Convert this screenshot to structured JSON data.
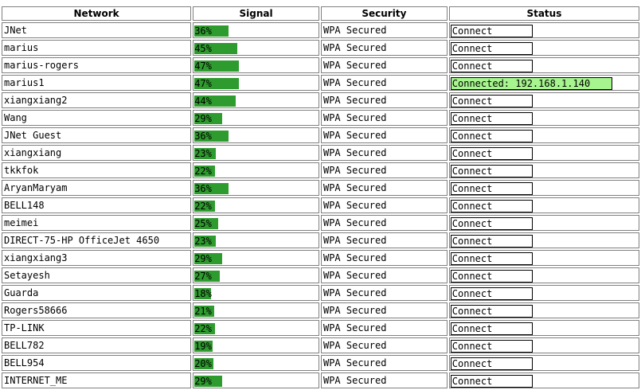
{
  "headers": {
    "network": "Network",
    "signal": "Signal",
    "security": "Security",
    "status": "Status"
  },
  "colors": {
    "signal_bar": "#2e9b2e",
    "connected_bg": "#a6f58e"
  },
  "networks": [
    {
      "name": "JNet",
      "signal": "36%",
      "signal_pct": 36,
      "security": "WPA Secured",
      "status": "Connect",
      "connected": false
    },
    {
      "name": "marius",
      "signal": "45%",
      "signal_pct": 45,
      "security": "WPA Secured",
      "status": "Connect",
      "connected": false
    },
    {
      "name": "marius-rogers",
      "signal": "47%",
      "signal_pct": 47,
      "security": "WPA Secured",
      "status": "Connect",
      "connected": false
    },
    {
      "name": "marius1",
      "signal": "47%",
      "signal_pct": 47,
      "security": "WPA Secured",
      "status": "Connected: 192.168.1.140",
      "connected": true
    },
    {
      "name": "xiangxiang2",
      "signal": "44%",
      "signal_pct": 44,
      "security": "WPA Secured",
      "status": "Connect",
      "connected": false
    },
    {
      "name": "Wang",
      "signal": "29%",
      "signal_pct": 29,
      "security": "WPA Secured",
      "status": "Connect",
      "connected": false
    },
    {
      "name": "JNet Guest",
      "signal": "36%",
      "signal_pct": 36,
      "security": "WPA Secured",
      "status": "Connect",
      "connected": false
    },
    {
      "name": "xiangxiang",
      "signal": "23%",
      "signal_pct": 23,
      "security": "WPA Secured",
      "status": "Connect",
      "connected": false
    },
    {
      "name": "tkkfok",
      "signal": "22%",
      "signal_pct": 22,
      "security": "WPA Secured",
      "status": "Connect",
      "connected": false
    },
    {
      "name": "AryanMaryam",
      "signal": "36%",
      "signal_pct": 36,
      "security": "WPA Secured",
      "status": "Connect",
      "connected": false
    },
    {
      "name": "BELL148",
      "signal": "22%",
      "signal_pct": 22,
      "security": "WPA Secured",
      "status": "Connect",
      "connected": false
    },
    {
      "name": "meimei",
      "signal": "25%",
      "signal_pct": 25,
      "security": "WPA Secured",
      "status": "Connect",
      "connected": false
    },
    {
      "name": "DIRECT-75-HP OfficeJet 4650",
      "signal": "23%",
      "signal_pct": 23,
      "security": "WPA Secured",
      "status": "Connect",
      "connected": false
    },
    {
      "name": "xiangxiang3",
      "signal": "29%",
      "signal_pct": 29,
      "security": "WPA Secured",
      "status": "Connect",
      "connected": false
    },
    {
      "name": "Setayesh",
      "signal": "27%",
      "signal_pct": 27,
      "security": "WPA Secured",
      "status": "Connect",
      "connected": false
    },
    {
      "name": "Guarda",
      "signal": "18%",
      "signal_pct": 18,
      "security": "WPA Secured",
      "status": "Connect",
      "connected": false
    },
    {
      "name": "Rogers58666",
      "signal": "21%",
      "signal_pct": 21,
      "security": "WPA Secured",
      "status": "Connect",
      "connected": false
    },
    {
      "name": "TP-LINK",
      "signal": "22%",
      "signal_pct": 22,
      "security": "WPA Secured",
      "status": "Connect",
      "connected": false
    },
    {
      "name": "BELL782",
      "signal": "19%",
      "signal_pct": 19,
      "security": "WPA Secured",
      "status": "Connect",
      "connected": false
    },
    {
      "name": "BELL954",
      "signal": "20%",
      "signal_pct": 20,
      "security": "WPA Secured",
      "status": "Connect",
      "connected": false
    },
    {
      "name": "INTERNET_ME",
      "signal": "29%",
      "signal_pct": 29,
      "security": "WPA Secured",
      "status": "Connect",
      "connected": false
    }
  ]
}
